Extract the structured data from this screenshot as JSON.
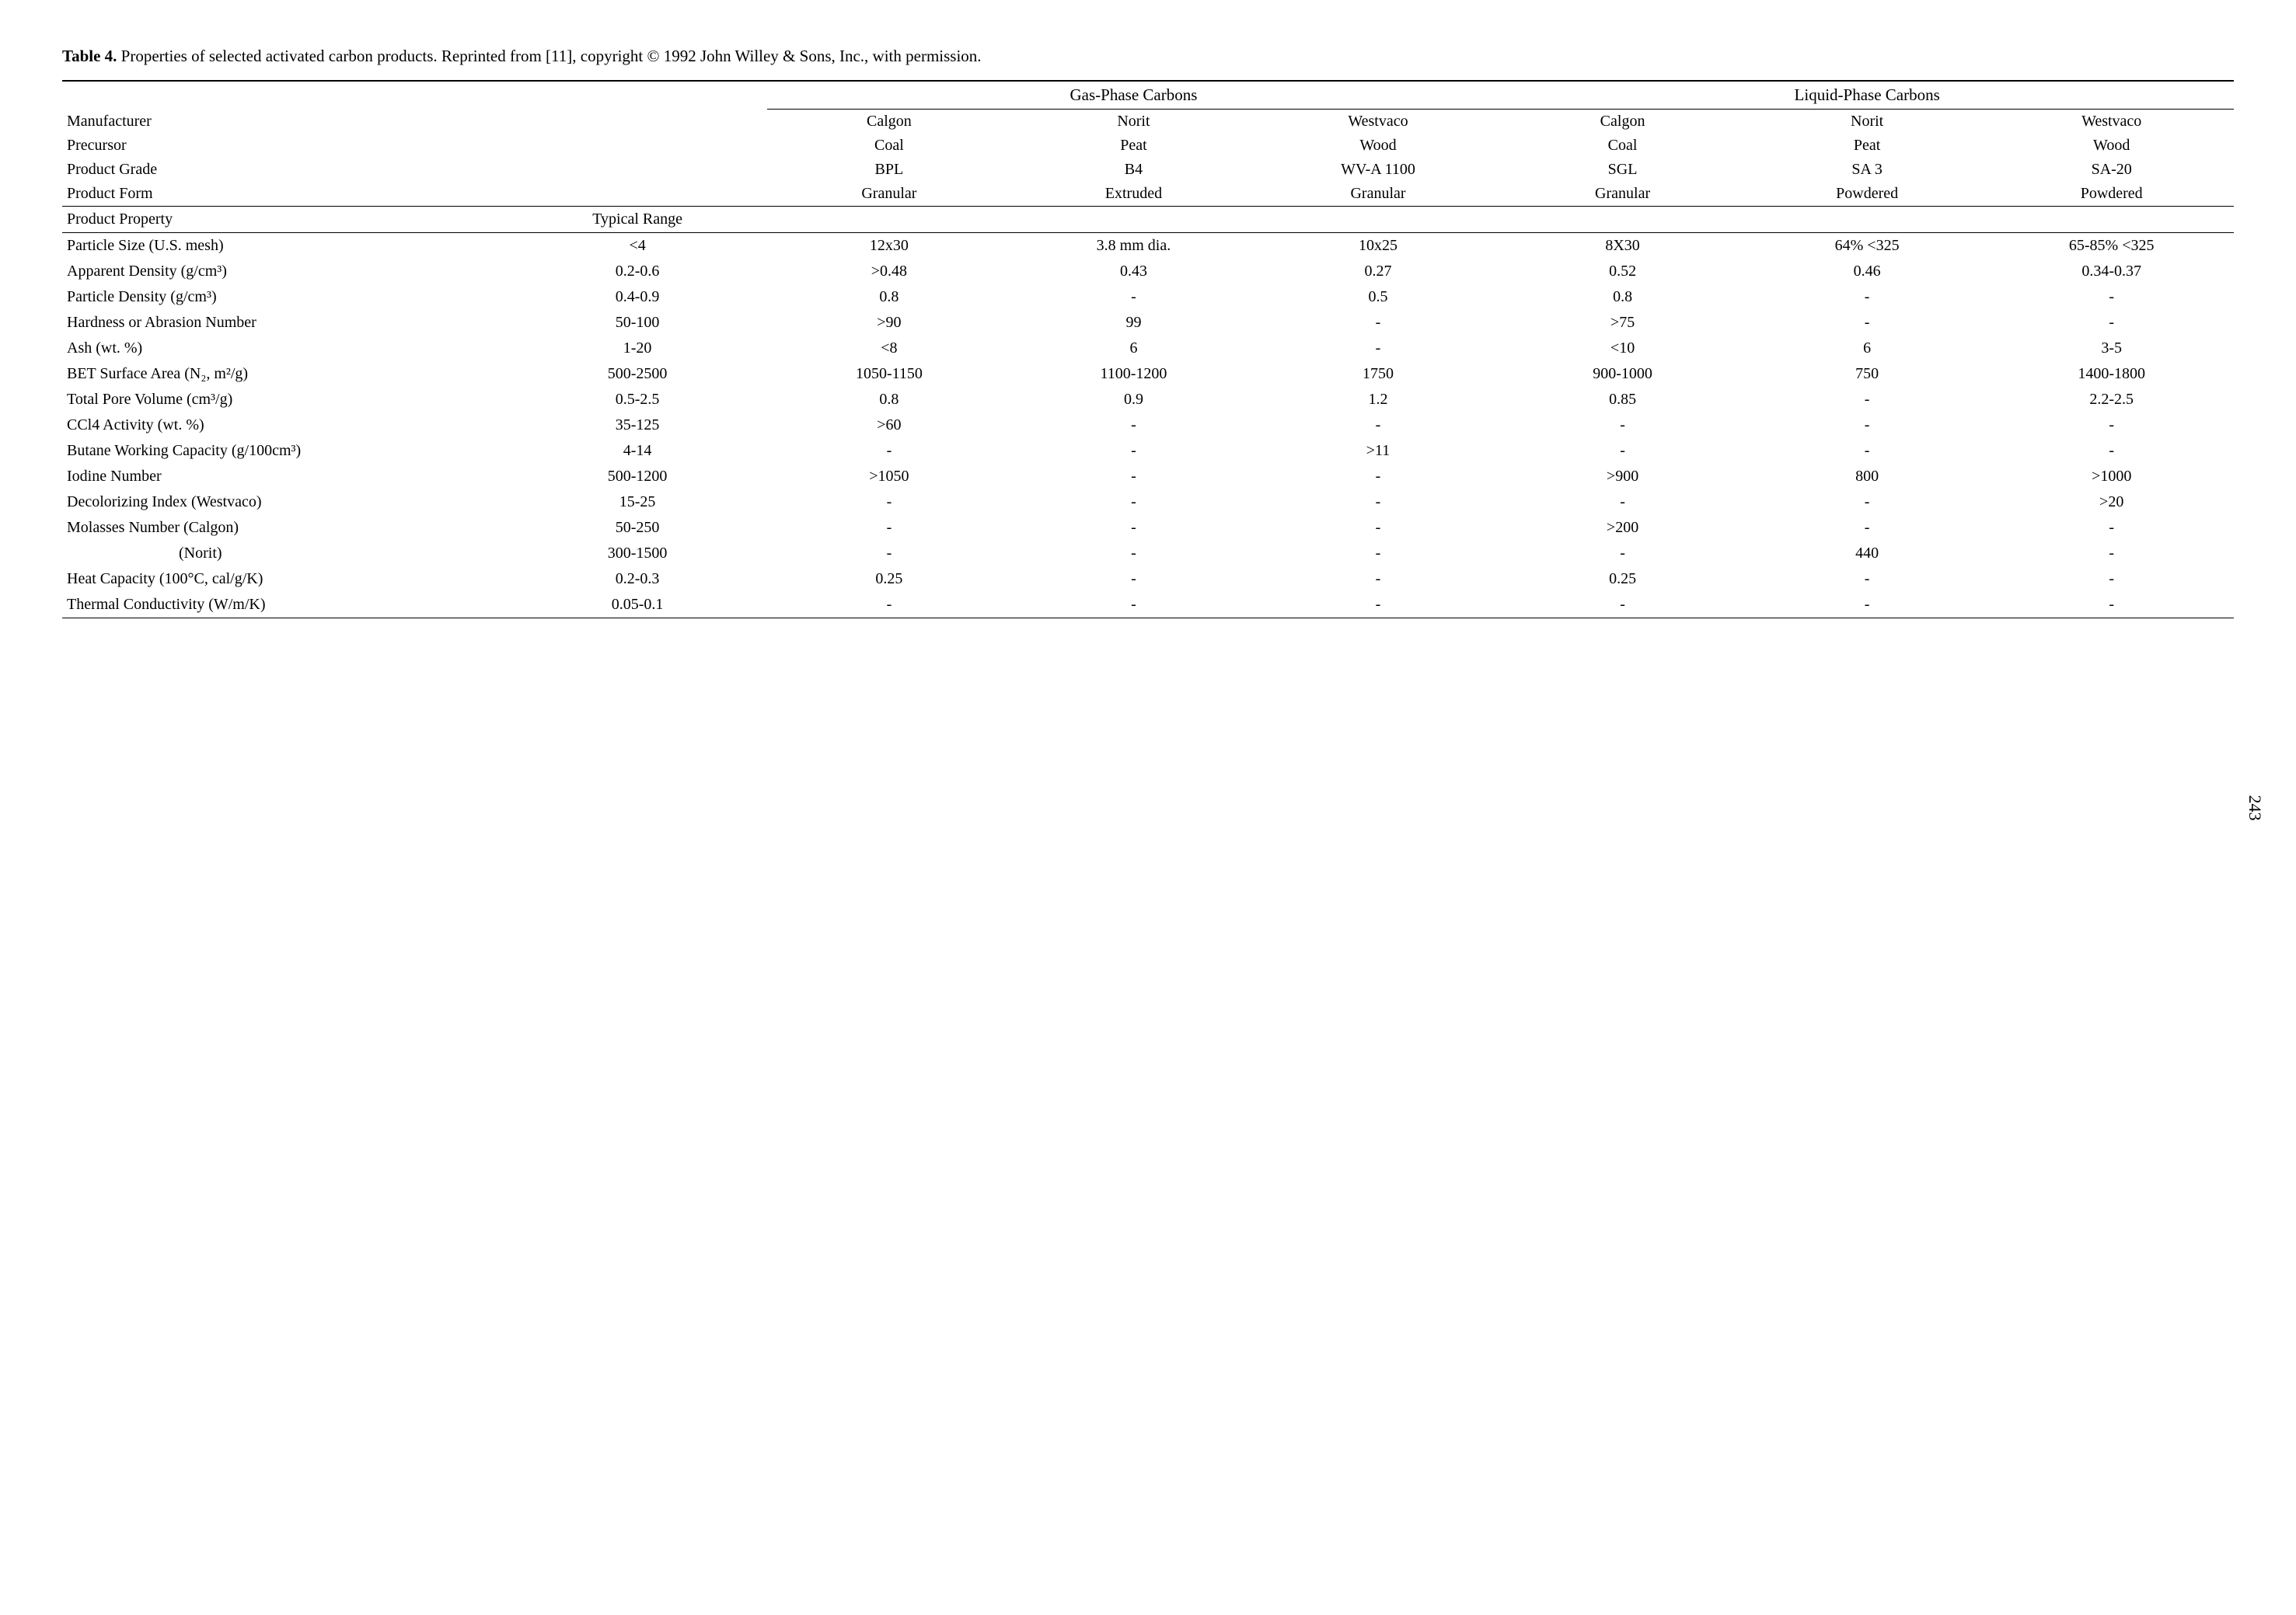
{
  "caption": {
    "label_bold": "Table 4.",
    "text": " Properties of selected activated carbon products.  Reprinted from [11], copyright © 1992 John Willey & Sons, Inc., with permission."
  },
  "page_number": "243",
  "group_headers": {
    "gas": "Gas-Phase Carbons",
    "liquid": "Liquid-Phase Carbons"
  },
  "header_rows": [
    {
      "label": "Manufacturer",
      "cells": [
        "Calgon",
        "Norit",
        "Westvaco",
        "Calgon",
        "Norit",
        "Westvaco"
      ]
    },
    {
      "label": "Precursor",
      "cells": [
        "Coal",
        "Peat",
        "Wood",
        "Coal",
        "Peat",
        "Wood"
      ]
    },
    {
      "label": "Product Grade",
      "cells": [
        "BPL",
        "B4",
        "WV-A 1100",
        "SGL",
        "SA 3",
        "SA-20"
      ]
    },
    {
      "label": "Product Form",
      "cells": [
        "Granular",
        "Extruded",
        "Granular",
        "Granular",
        "Powdered",
        "Powdered"
      ]
    }
  ],
  "section_header": {
    "property": "Product Property",
    "range": "Typical Range"
  },
  "data_rows": [
    {
      "label": "Particle Size (U.S. mesh)",
      "range": "<4",
      "cells": [
        "12x30",
        "3.8 mm dia.",
        "10x25",
        "8X30",
        "64% <325",
        "65-85% <325"
      ]
    },
    {
      "label": "Apparent Density (g/cm³)",
      "range": "0.2-0.6",
      "cells": [
        ">0.48",
        "0.43",
        "0.27",
        "0.52",
        "0.46",
        "0.34-0.37"
      ]
    },
    {
      "label": "Particle Density (g/cm³)",
      "range": "0.4-0.9",
      "cells": [
        "0.8",
        "-",
        "0.5",
        "0.8",
        "-",
        "-"
      ]
    },
    {
      "label": "Hardness or Abrasion Number",
      "range": "50-100",
      "cells": [
        ">90",
        "99",
        "-",
        ">75",
        "-",
        "-"
      ]
    },
    {
      "label": "Ash (wt. %)",
      "range": "1-20",
      "cells": [
        "<8",
        "6",
        "-",
        "<10",
        "6",
        "3-5"
      ]
    },
    {
      "label": "BET Surface Area (N₂, m²/g)",
      "range": "500-2500",
      "cells": [
        "1050-1150",
        "1100-1200",
        "1750",
        "900-1000",
        "750",
        "1400-1800"
      ]
    },
    {
      "label": "Total Pore Volume (cm³/g)",
      "range": "0.5-2.5",
      "cells": [
        "0.8",
        "0.9",
        "1.2",
        "0.85",
        "-",
        "2.2-2.5"
      ]
    },
    {
      "label": "CCl4 Activity (wt. %)",
      "range": "35-125",
      "cells": [
        ">60",
        "-",
        "-",
        "-",
        "-",
        "-"
      ]
    },
    {
      "label": "Butane Working Capacity (g/100cm³)",
      "range": "4-14",
      "cells": [
        "-",
        "-",
        ">11",
        "-",
        "-",
        "-"
      ]
    },
    {
      "label": "Iodine Number",
      "range": "500-1200",
      "cells": [
        ">1050",
        "-",
        "-",
        ">900",
        "800",
        ">1000"
      ]
    },
    {
      "label": "Decolorizing Index (Westvaco)",
      "range": "15-25",
      "cells": [
        "-",
        "-",
        "-",
        "-",
        "-",
        ">20"
      ]
    },
    {
      "label": "Molasses Number       (Calgon)",
      "range": "50-250",
      "cells": [
        "-",
        "-",
        "-",
        ">200",
        "-",
        "-"
      ]
    },
    {
      "label": "(Norit)",
      "range": "300-1500",
      "cells": [
        "-",
        "-",
        "-",
        "-",
        "440",
        "-"
      ],
      "indent": true
    },
    {
      "label": "Heat Capacity (100°C, cal/g/K)",
      "range": "0.2-0.3",
      "cells": [
        "0.25",
        "-",
        "-",
        "0.25",
        "-",
        "-"
      ]
    },
    {
      "label": "Thermal Conductivity (W/m/K)",
      "range": "0.05-0.1",
      "cells": [
        "-",
        "-",
        "-",
        "-",
        "-",
        "-"
      ]
    }
  ]
}
